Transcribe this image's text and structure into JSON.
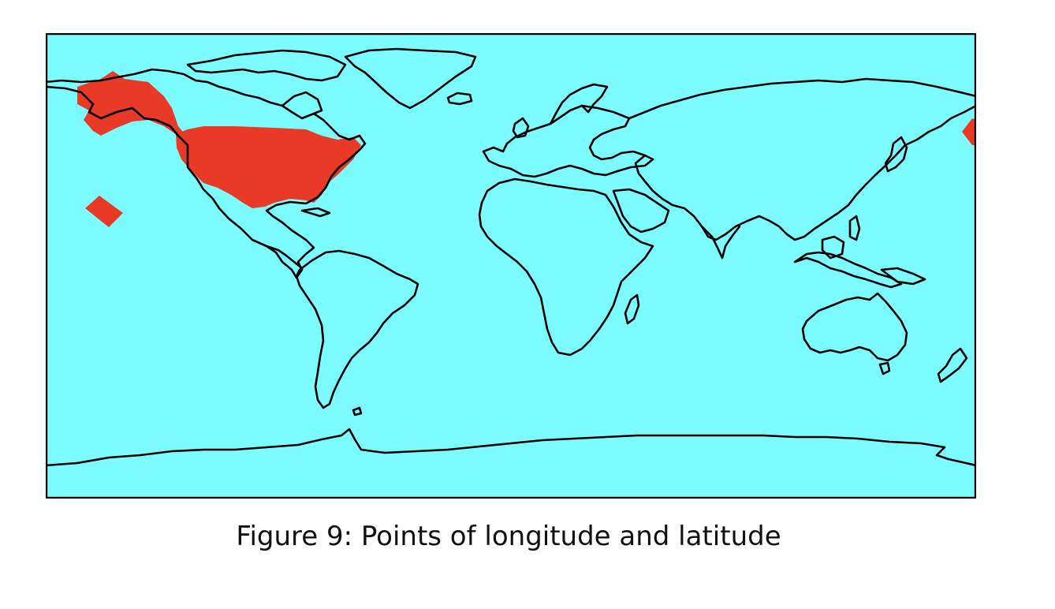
{
  "figure": {
    "caption": "Figure 9: Points of longitude and latitude"
  },
  "map": {
    "projection": "equirectangular",
    "extent": {
      "lon": [
        -180,
        180
      ],
      "lat": [
        -90,
        90
      ]
    },
    "colors": {
      "ocean": "#7cfcff",
      "coastline": "#000000",
      "highlight": "#e83a26"
    },
    "highlighted_regions": [
      "Alaska",
      "Contiguous United States",
      "Hawaii",
      "Western Aleutian Islands"
    ]
  }
}
